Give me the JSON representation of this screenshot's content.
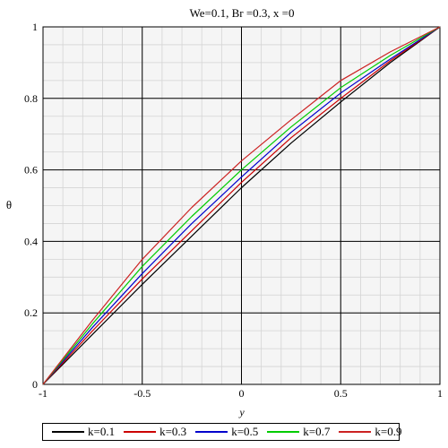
{
  "chart_data": {
    "type": "line",
    "title": "We=0.1, Br =0.3, x =0",
    "xlabel": "y",
    "ylabel": "θ",
    "xlim": [
      -1,
      1
    ],
    "ylim": [
      0,
      1
    ],
    "xticks": [
      -1,
      -0.5,
      0,
      0.5,
      1
    ],
    "xtick_labels": [
      "-1",
      "-0.5",
      "0",
      "0.5",
      "1"
    ],
    "yticks": [
      0,
      0.2,
      0.4,
      0.6,
      0.8,
      1
    ],
    "ytick_labels": [
      "0",
      "0.2",
      "0.4",
      "0.6",
      "0.8",
      "1"
    ],
    "grid": true,
    "legend_position": "bottom",
    "x": [
      -1,
      -0.75,
      -0.5,
      -0.25,
      0,
      0.25,
      0.5,
      0.75,
      1
    ],
    "series": [
      {
        "name": "k=0.1",
        "color": "#000000",
        "values": [
          0,
          0.14,
          0.28,
          0.415,
          0.55,
          0.675,
          0.79,
          0.9,
          1
        ]
      },
      {
        "name": "k=0.3",
        "color": "#cc0000",
        "values": [
          0,
          0.15,
          0.295,
          0.43,
          0.565,
          0.69,
          0.8,
          0.905,
          1
        ]
      },
      {
        "name": "k=0.5",
        "color": "#0000cc",
        "values": [
          0,
          0.16,
          0.31,
          0.45,
          0.58,
          0.705,
          0.815,
          0.91,
          1
        ]
      },
      {
        "name": "k=0.7",
        "color": "#00cc00",
        "values": [
          0,
          0.17,
          0.33,
          0.47,
          0.6,
          0.72,
          0.83,
          0.92,
          1
        ]
      },
      {
        "name": "k=0.9",
        "color": "#cc2222",
        "values": [
          0,
          0.18,
          0.35,
          0.495,
          0.625,
          0.74,
          0.85,
          0.93,
          1
        ]
      }
    ]
  }
}
